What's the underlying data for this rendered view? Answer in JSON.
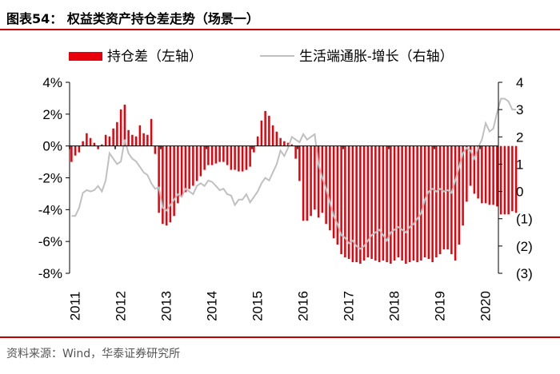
{
  "figure": {
    "title": "图表54：  权益类资产持仓差走势（场景一）",
    "source": "资料来源：Wind，华泰证券研究所"
  },
  "colors": {
    "bars": "#e8000b",
    "line": "#c0c0c0",
    "rule": "#c00000"
  },
  "chart_data": {
    "type": "bar+line",
    "legend_position": "top",
    "x_tick_labels": [
      "2011",
      "2012",
      "2013",
      "2014",
      "2015",
      "2016",
      "2017",
      "2018",
      "2019",
      "2020"
    ],
    "left_axis": {
      "ylim": [
        -8,
        4
      ],
      "tick_labels": [
        "4%",
        "2%",
        "0%",
        "-2%",
        "-4%",
        "-6%",
        "-8%"
      ],
      "tick_values": [
        4,
        2,
        0,
        -2,
        -4,
        -6,
        -8
      ]
    },
    "right_axis": {
      "ylim": [
        -3,
        4
      ],
      "tick_labels": [
        "4",
        "3",
        "2",
        "1",
        "0",
        "(1)",
        "(2)",
        "(3)"
      ],
      "tick_values": [
        4,
        3,
        2,
        1,
        0,
        -1,
        -2,
        -3
      ]
    },
    "series": [
      {
        "name": "持仓差（左轴）",
        "axis": "left",
        "type": "bar",
        "x_start": "2011-01",
        "frequency": "monthly",
        "values": [
          -1.0,
          -0.6,
          -0.4,
          0.3,
          0.8,
          0.5,
          0.2,
          -0.2,
          0.1,
          0.7,
          0.6,
          1.1,
          1.5,
          2.3,
          2.6,
          1.0,
          0.7,
          0.6,
          1.3,
          0.8,
          0.7,
          1.7,
          -0.5,
          -4.2,
          -4.9,
          -5.0,
          -4.8,
          -4.4,
          -3.6,
          -3.2,
          -2.9,
          -2.7,
          -2.5,
          -2.2,
          -1.9,
          -1.5,
          -1.2,
          -1.2,
          -1.1,
          -1.0,
          -1.0,
          -1.2,
          -1.5,
          -1.5,
          -1.6,
          -1.6,
          -1.5,
          -1.3,
          -0.4,
          0.6,
          1.6,
          2.2,
          1.9,
          1.3,
          0.9,
          0.5,
          0.3,
          0.2,
          0.1,
          -0.8,
          -2.2,
          -4.7,
          -4.7,
          -4.4,
          -4.0,
          -4.5,
          -4.2,
          -4.9,
          -5.3,
          -5.8,
          -6.2,
          -6.8,
          -7.0,
          -7.1,
          -7.3,
          -7.3,
          -7.4,
          -7.2,
          -7.0,
          -7.1,
          -7.2,
          -7.3,
          -7.2,
          -7.3,
          -7.4,
          -7.2,
          -7.0,
          -7.2,
          -7.4,
          -7.3,
          -7.2,
          -7.3,
          -7.2,
          -7.0,
          -7.1,
          -7.3,
          -7.0,
          -6.8,
          -6.5,
          -6.5,
          -6.8,
          -7.2,
          -6.2,
          -5.0,
          -3.5,
          -2.5,
          -3.0,
          -3.3,
          -3.6,
          -3.6,
          -3.7,
          -3.7,
          -3.8,
          -4.3,
          -4.3,
          -4.3,
          -4.1,
          -4.2
        ]
      },
      {
        "name": "生活端通胀-增长（右轴）",
        "axis": "right",
        "type": "line",
        "x_start": "2011-01",
        "frequency": "monthly",
        "values": [
          -0.9,
          -0.9,
          -0.6,
          -0.05,
          0.05,
          0.0,
          0.05,
          0.2,
          0.0,
          0.4,
          1.4,
          1.2,
          1.0,
          1.1,
          1.9,
          1.4,
          1.2,
          1.1,
          0.9,
          0.7,
          0.6,
          0.3,
          0.1,
          0.15,
          -0.6,
          -0.7,
          -0.5,
          -0.3,
          -0.1,
          -0.2,
          0.1,
          0.0,
          -0.1,
          0.2,
          0.3,
          0.2,
          0.4,
          0.35,
          0.2,
          0.05,
          0.1,
          -0.1,
          -0.15,
          -0.5,
          -0.3,
          -0.3,
          -0.1,
          -0.4,
          -0.2,
          0.0,
          0.3,
          0.5,
          0.4,
          0.7,
          1.0,
          1.5,
          1.3,
          1.6,
          2.0,
          1.9,
          1.8,
          2.1,
          1.9,
          2.0,
          2.1,
          1.0,
          0.5,
          0.1,
          -0.4,
          -0.9,
          -1.2,
          -1.6,
          -1.7,
          -1.9,
          -1.8,
          -2.0,
          -2.1,
          -2.0,
          -1.8,
          -1.6,
          -1.5,
          -1.4,
          -1.6,
          -1.8,
          -1.5,
          -1.4,
          -1.3,
          -1.4,
          -1.5,
          -1.3,
          -1.2,
          -1.0,
          -0.8,
          -0.3,
          0.0,
          0.1,
          0.0,
          0.1,
          0.0,
          0.05,
          -0.05,
          0.4,
          0.9,
          1.4,
          1.6,
          1.5,
          1.2,
          1.6,
          1.9,
          2.5,
          2.2,
          2.3,
          2.9,
          3.4,
          3.4,
          3.3,
          3.0,
          3.0
        ]
      }
    ]
  }
}
